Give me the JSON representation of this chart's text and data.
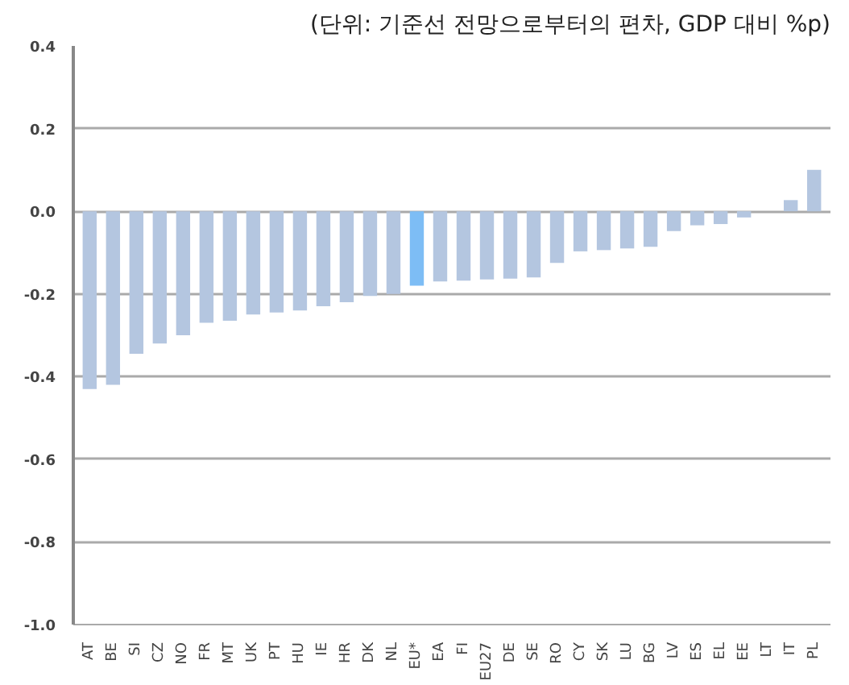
{
  "chart_data": {
    "type": "bar",
    "title": "(단위: 기준선 전망으로부터의 편차, GDP 대비 %p)",
    "categories": [
      "AT",
      "BE",
      "SI",
      "CZ",
      "NO",
      "FR",
      "MT",
      "UK",
      "PT",
      "HU",
      "IE",
      "HR",
      "DK",
      "NL",
      "EU*",
      "EA",
      "FI",
      "EU27",
      "DE",
      "SE",
      "RO",
      "CY",
      "SK",
      "LU",
      "BG",
      "LV",
      "ES",
      "EL",
      "EE",
      "LT",
      "IT",
      "PL"
    ],
    "values": [
      -0.43,
      -0.42,
      -0.345,
      -0.32,
      -0.3,
      -0.27,
      -0.265,
      -0.25,
      -0.245,
      -0.24,
      -0.23,
      -0.22,
      -0.205,
      -0.2,
      -0.18,
      -0.17,
      -0.168,
      -0.165,
      -0.163,
      -0.16,
      -0.125,
      -0.097,
      -0.094,
      -0.09,
      -0.086,
      -0.048,
      -0.034,
      -0.031,
      -0.015,
      0,
      0.027,
      0.1
    ],
    "colors": [
      "#b4c6e0",
      "#b4c6e0",
      "#b4c6e0",
      "#b4c6e0",
      "#b4c6e0",
      "#b4c6e0",
      "#b4c6e0",
      "#b4c6e0",
      "#b4c6e0",
      "#b4c6e0",
      "#b4c6e0",
      "#b4c6e0",
      "#b4c6e0",
      "#b4c6e0",
      "#7dbdf5",
      "#b4c6e0",
      "#b4c6e0",
      "#b4c6e0",
      "#b4c6e0",
      "#b4c6e0",
      "#b4c6e0",
      "#b4c6e0",
      "#b4c6e0",
      "#b4c6e0",
      "#b4c6e0",
      "#b4c6e0",
      "#b4c6e0",
      "#b4c6e0",
      "#b4c6e0",
      "#b4c6e0",
      "#b4c6e0",
      "#b4c6e0"
    ],
    "ylim": [
      -1.0,
      0.4
    ],
    "yticks": [
      {
        "value": 0.4,
        "label": "0.4"
      },
      {
        "value": 0.2,
        "label": "0.2"
      },
      {
        "value": 0,
        "label": "0.0"
      },
      {
        "value": -0.2,
        "label": "-0.2"
      },
      {
        "value": -0.4,
        "label": "-0.4"
      },
      {
        "value": -0.6,
        "label": "-0.6"
      },
      {
        "value": -0.8,
        "label": "-0.8"
      },
      {
        "value": -1.0,
        "label": "-1.0"
      }
    ],
    "grid": "y"
  }
}
